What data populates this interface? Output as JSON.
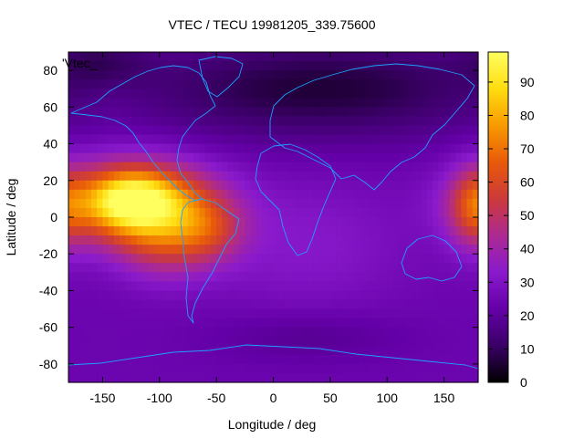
{
  "chart_data": {
    "type": "heatmap",
    "title": "VTEC / TECU 19981205_339.75600",
    "xlabel": "Longitude / deg",
    "ylabel": "Latitude / deg",
    "series_label": "'Vtec_",
    "xlim": [
      -180,
      180
    ],
    "ylim": [
      -90,
      90
    ],
    "x_ticks": [
      -150,
      -100,
      -50,
      0,
      50,
      100,
      150
    ],
    "y_ticks": [
      -80,
      -60,
      -40,
      -20,
      0,
      20,
      40,
      60,
      80
    ],
    "colorbar": {
      "range": [
        0,
        99
      ],
      "ticks": [
        0,
        10,
        20,
        30,
        40,
        50,
        60,
        70,
        80,
        90
      ],
      "palette": [
        "#000000",
        "#3a0066",
        "#6400a8",
        "#8a1acc",
        "#ac2a92",
        "#cc3a3a",
        "#e85a0a",
        "#f89a00",
        "#ffdd10",
        "#ffff60"
      ]
    },
    "value_field": {
      "background": 24,
      "features": [
        {
          "lon": -120,
          "lat": 8,
          "slon": 45,
          "slat": 15,
          "value": 70
        },
        {
          "lon": -125,
          "lat": 10,
          "slon": 22,
          "slat": 9,
          "value": 18
        },
        {
          "lon": -95,
          "lat": -15,
          "slon": 30,
          "slat": 14,
          "value": 22
        },
        {
          "lon": -55,
          "lat": -8,
          "slon": 22,
          "slat": 12,
          "value": 18
        },
        {
          "lon": 175,
          "lat": 5,
          "slon": 15,
          "slat": 16,
          "value": 22
        },
        {
          "lon": 40,
          "lat": 70,
          "slon": 120,
          "slat": 20,
          "value": -18
        },
        {
          "lon": -150,
          "lat": 85,
          "slon": 30,
          "slat": 10,
          "value": -10
        },
        {
          "lon": 30,
          "lat": -65,
          "slon": 60,
          "slat": 10,
          "value": -6
        },
        {
          "lon": 30,
          "lat": -15,
          "slon": 60,
          "slat": 25,
          "value": 8
        }
      ]
    }
  }
}
